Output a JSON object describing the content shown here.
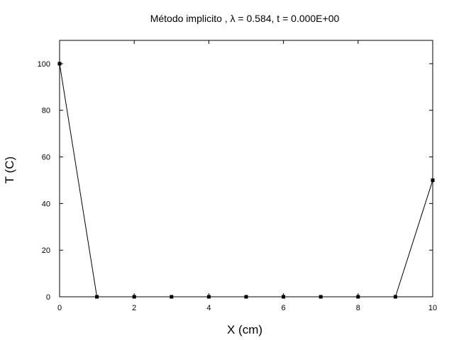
{
  "chart_data": {
    "type": "line",
    "title": "Método implicito ,  λ = 0.584, t = 0.000E+00",
    "xlabel": "X (cm)",
    "ylabel": "T (C)",
    "xlim": [
      0,
      10
    ],
    "ylim": [
      0,
      110
    ],
    "xticks": [
      "0",
      "2",
      "4",
      "6",
      "8",
      "10"
    ],
    "yticks": [
      "0",
      "20",
      "40",
      "60",
      "80",
      "100"
    ],
    "grid": false,
    "legend": "none",
    "line_color": "#000000",
    "series": [
      {
        "x": [
          0,
          1,
          2,
          3,
          4,
          5,
          6,
          7,
          8,
          9,
          10
        ],
        "y": [
          100,
          0,
          0,
          0,
          0,
          0,
          0,
          0,
          0,
          0,
          50
        ]
      }
    ]
  }
}
